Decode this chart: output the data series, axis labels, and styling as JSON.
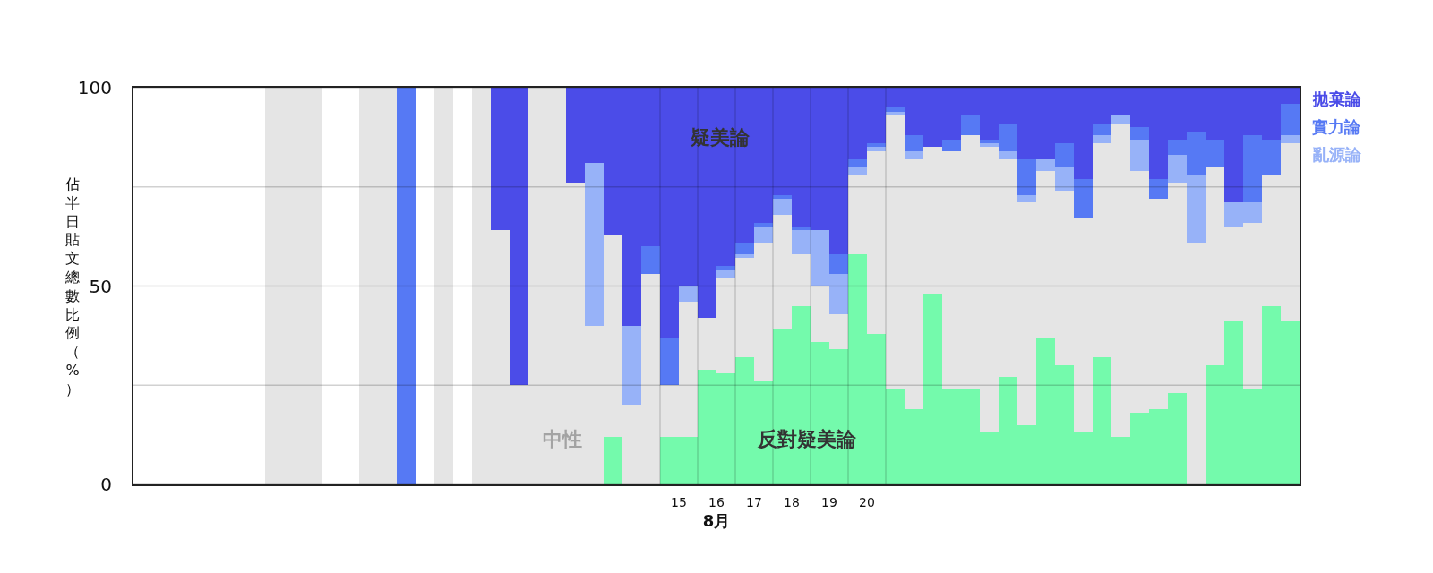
{
  "chart_data": {
    "type": "bar",
    "stacked": true,
    "x": [
      4.25,
      4.75,
      5.25,
      6.75,
      7.25,
      7.75,
      8.75,
      9.75,
      10.25,
      10.75,
      11.25,
      11.75,
      12.25,
      12.75,
      13.25,
      13.75,
      14.25,
      14.75,
      15.25,
      15.75,
      16.25,
      16.75,
      17.25,
      17.75,
      18.25,
      18.75,
      19.25,
      19.75,
      20.25,
      20.75,
      21.25,
      21.75,
      22.25,
      22.75,
      23.25,
      23.75,
      24.25,
      24.75,
      25.25,
      25.75,
      26.25,
      26.75,
      27.25,
      27.75,
      28.25,
      28.75,
      29.25,
      29.75,
      30.25,
      30.75,
      31.25
    ],
    "series": [
      {
        "color": "#74faac",
        "values": [
          0,
          0,
          0,
          0,
          0,
          0,
          0,
          0,
          0,
          0,
          0,
          0,
          0,
          0,
          12,
          0,
          0,
          12,
          12,
          29,
          28,
          32,
          26,
          39,
          45,
          36,
          34,
          58,
          38,
          24,
          19,
          48,
          24,
          24,
          13,
          27,
          15,
          37,
          30,
          13,
          32,
          12,
          18,
          19,
          23,
          0,
          30,
          41,
          24,
          45,
          41
        ]
      },
      {
        "color": "#e5e5e5",
        "values": [
          100,
          100,
          100,
          100,
          100,
          0,
          100,
          100,
          64,
          25,
          100,
          100,
          76,
          40,
          51,
          20,
          53,
          13,
          34,
          13,
          24,
          25,
          35,
          29,
          13,
          14,
          9,
          20,
          46,
          69,
          63,
          37,
          60,
          64,
          72,
          55,
          56,
          42,
          44,
          54,
          54,
          79,
          61,
          53,
          53,
          61,
          50,
          24,
          42,
          33,
          45
        ]
      },
      {
        "name": "亂源論",
        "color": "#97b2f8",
        "values": [
          0,
          0,
          0,
          0,
          0,
          0,
          0,
          0,
          0,
          0,
          0,
          0,
          0,
          41,
          0,
          20,
          0,
          0,
          4,
          0,
          2,
          1,
          4,
          4,
          6,
          14,
          10,
          2,
          1,
          1,
          2,
          0,
          0,
          0,
          1,
          2,
          2,
          3,
          6,
          0,
          2,
          2,
          8,
          0,
          7,
          17,
          0,
          6,
          5,
          0,
          2
        ]
      },
      {
        "name": "實力論",
        "color": "#5679f4",
        "values": [
          0,
          0,
          0,
          0,
          0,
          100,
          0,
          0,
          0,
          0,
          0,
          0,
          0,
          0,
          0,
          0,
          7,
          12,
          0,
          0,
          1,
          3,
          1,
          1,
          1,
          0,
          5,
          2,
          1,
          1,
          4,
          0,
          3,
          5,
          1,
          7,
          9,
          0,
          6,
          10,
          3,
          0,
          3,
          5,
          4,
          11,
          7,
          0,
          17,
          9,
          8
        ]
      },
      {
        "name": "拋棄論",
        "color": "#4b4ce8",
        "values": [
          0,
          0,
          0,
          0,
          0,
          0,
          0,
          0,
          36,
          75,
          0,
          0,
          24,
          19,
          37,
          60,
          40,
          63,
          50,
          58,
          45,
          39,
          34,
          27,
          35,
          36,
          42,
          18,
          14,
          5,
          12,
          15,
          13,
          7,
          13,
          9,
          18,
          18,
          14,
          23,
          9,
          7,
          10,
          23,
          13,
          11,
          13,
          29,
          12,
          13,
          4
        ]
      }
    ],
    "xlim": [
      0.5,
      31.5
    ],
    "xticks": [
      15,
      16,
      17,
      18,
      19,
      20
    ],
    "ylim": [
      0,
      100
    ],
    "yticks": [
      0,
      {
        "value": 25,
        "label": null
      },
      50,
      {
        "value": 75,
        "label": null
      },
      100
    ],
    "xlabel": "8月",
    "ylabel": "佔半日貼文總數比例（%）",
    "grid": "y",
    "legend": "top right",
    "ref_lines": [
      {
        "axis": "x",
        "value": 14.5
      },
      {
        "axis": "x",
        "value": 15.5
      },
      {
        "axis": "x",
        "value": 16.5
      },
      {
        "axis": "x",
        "value": 17.5
      },
      {
        "axis": "x",
        "value": 18.5
      },
      {
        "axis": "x",
        "value": 19.5
      },
      {
        "axis": "x",
        "value": 20.5
      }
    ],
    "annotations": [
      {
        "text": "疑美論",
        "x": 16.1,
        "y": 87.5
      },
      {
        "text": "中性",
        "x": 11.9,
        "y": 11.3
      },
      {
        "text": "反對疑美論",
        "x": 18.4,
        "y": 11.3
      }
    ]
  }
}
